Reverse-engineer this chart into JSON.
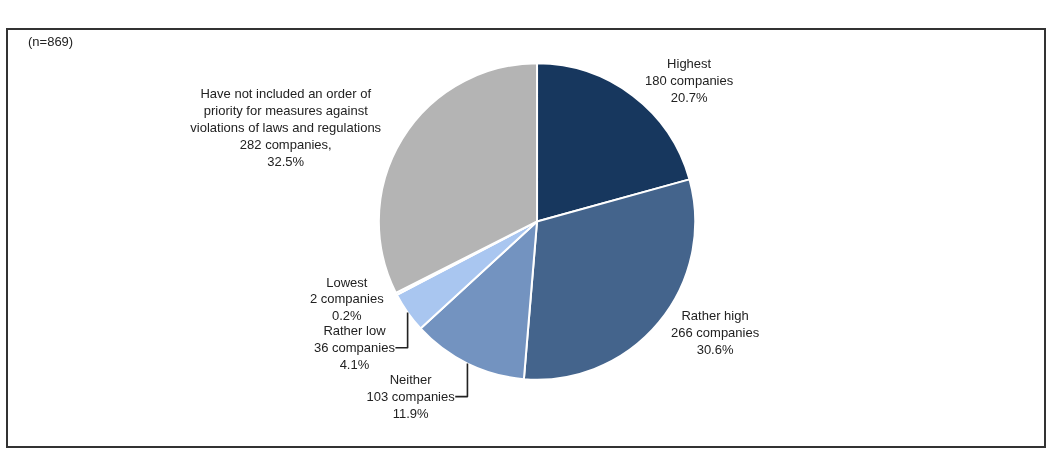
{
  "chart_data": {
    "type": "pie",
    "categories": [
      "Highest",
      "Rather high",
      "Neither",
      "Rather low",
      "Lowest",
      "Have not included an order of\npriority for measures against\nviolations of laws and regulations"
    ],
    "values": [
      180,
      266,
      103,
      36,
      2,
      282
    ],
    "value_labels": [
      "180 companies\n20.7%",
      "266 companies\n30.6%",
      "103 companies\n11.9%",
      "36 companies\n4.1%",
      "2 companies\n0.2%",
      "282 companies,\n32.5%"
    ],
    "colors": [
      "#17375e",
      "#44648c",
      "#7393c0",
      "#a9c6f0",
      "#c8d8ee",
      "#b4b4b4"
    ],
    "annotations": [
      "(n=869)"
    ],
    "legend": false
  }
}
